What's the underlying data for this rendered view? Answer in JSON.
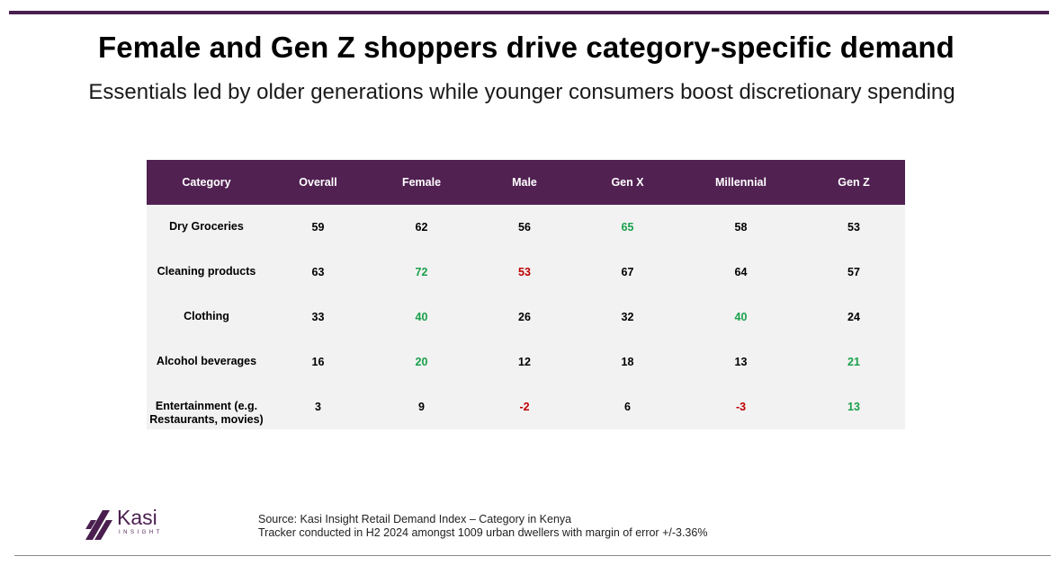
{
  "title": "Female and Gen Z shoppers drive category-specific demand",
  "subtitle": "Essentials led by older generations while younger consumers boost discretionary spending",
  "colors": {
    "header_bg": "#512152",
    "positive": "#19a04b",
    "negative": "#c00000",
    "neutral": "#000000"
  },
  "chart_data": {
    "type": "table",
    "columns": [
      "Category",
      "Overall",
      "Female",
      "Male",
      "Gen X",
      "Millennial",
      "Gen Z"
    ],
    "rows": [
      {
        "category": "Dry Groceries",
        "values": [
          59,
          62,
          56,
          65,
          58,
          53
        ],
        "highlights": [
          "",
          "",
          "",
          "positive",
          "",
          ""
        ]
      },
      {
        "category": "Cleaning products",
        "values": [
          63,
          72,
          53,
          67,
          64,
          57
        ],
        "highlights": [
          "",
          "positive",
          "negative",
          "",
          "",
          ""
        ]
      },
      {
        "category": "Clothing",
        "values": [
          33,
          40,
          26,
          32,
          40,
          24
        ],
        "highlights": [
          "",
          "positive",
          "",
          "",
          "positive",
          ""
        ]
      },
      {
        "category": "Alcohol beverages",
        "values": [
          16,
          20,
          12,
          18,
          13,
          21
        ],
        "highlights": [
          "",
          "positive",
          "",
          "",
          "",
          "positive"
        ]
      },
      {
        "category": "Entertainment (e.g. Restaurants, movies)",
        "values": [
          3,
          9,
          -2,
          6,
          -3,
          13
        ],
        "highlights": [
          "",
          "",
          "negative",
          "",
          "negative",
          "positive"
        ]
      }
    ]
  },
  "logo": {
    "name": "Kasi",
    "sub": "INSIGHT"
  },
  "footer": {
    "source": "Source: Kasi Insight Retail Demand Index – Category in Kenya",
    "note": "Tracker conducted in H2 2024 amongst 1009 urban dwellers with margin of error +/-3.36%"
  }
}
